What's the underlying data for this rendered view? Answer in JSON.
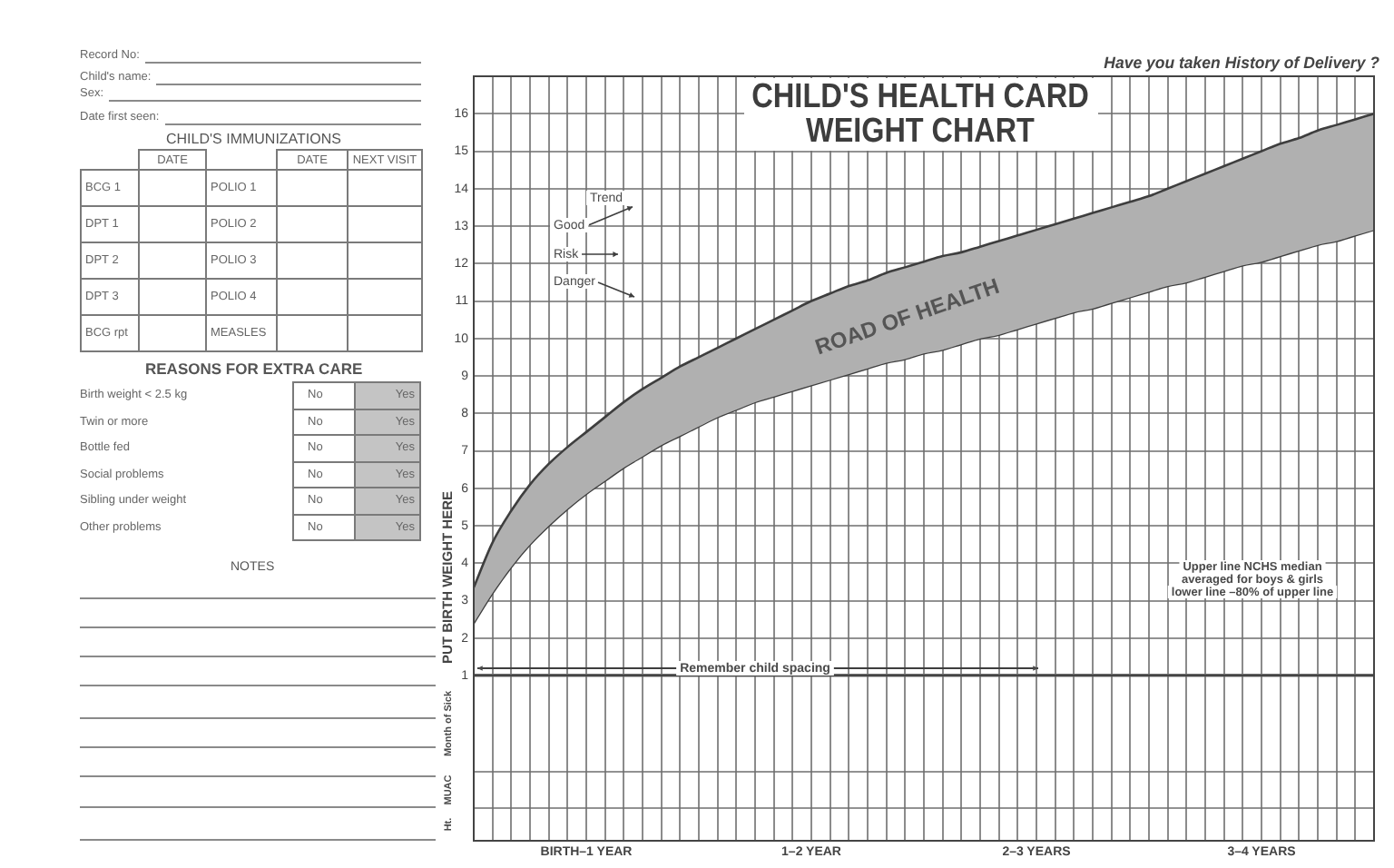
{
  "chart_data": [
    {
      "type": "other",
      "annotations": [
        "Record No:",
        "Child's name:",
        "Sex:",
        "Date first seen:",
        "CHILD'S IMMUNIZATIONS",
        "DATE",
        "DATE",
        "NEXT VISIT",
        "BCG 1",
        "POLIO 1",
        "DPT 1",
        "POLIO 2",
        "DPT 2",
        "POLIO 3",
        "DPT 3",
        "POLIO 4",
        "BCG rpt",
        "MEASLES",
        "REASONS FOR EXTRA CARE",
        "Birth weight < 2.5 kg",
        "No",
        "Yes",
        "Twin or more",
        "No",
        "Yes",
        "Bottle fed",
        "No",
        "Yes",
        "Social problems",
        "No",
        "Yes",
        "Sibling under weight",
        "No",
        "Yes",
        "Other problems",
        "No",
        "Yes",
        "NOTES"
      ]
    },
    {
      "type": "line",
      "title": "CHILD'S HEALTH CARD",
      "subtitle": "WEIGHT CHART",
      "ylabel": "PUT BIRTH WEIGHT HERE",
      "categories": [
        null,
        null,
        null,
        null,
        null,
        null,
        null,
        null,
        null,
        null,
        null,
        null,
        null,
        null,
        null,
        null,
        null,
        null,
        null,
        null,
        null,
        null,
        null,
        null,
        null,
        null,
        null,
        null,
        null,
        null,
        null,
        null,
        null,
        null,
        null,
        null,
        null,
        null,
        null,
        null,
        null,
        null,
        null,
        null,
        null,
        null,
        null,
        null,
        null
      ],
      "series": [
        {
          "type": "area",
          "color": "#b0b0b0",
          "values": [
            3.35,
            4.55,
            5.4,
            6.1,
            6.65,
            7.1,
            7.5,
            7.9,
            8.3,
            8.65,
            8.95,
            9.25,
            9.5,
            9.75,
            10.0,
            10.25,
            10.5,
            10.75,
            11.0,
            11.2,
            11.4,
            11.55,
            11.75,
            11.9,
            12.05,
            12.2,
            12.3,
            12.45,
            12.6,
            12.75,
            12.9,
            13.05,
            13.2,
            13.35,
            13.5,
            13.65,
            13.8,
            14.0,
            14.2,
            14.4,
            14.6,
            14.8,
            15.0,
            15.2,
            15.35,
            15.55,
            15.7,
            15.85,
            16.0
          ]
        },
        {
          "type": "line",
          "color": "#3e3e3e",
          "values": [
            2.4,
            3.2,
            3.9,
            4.5,
            5.0,
            5.45,
            5.85,
            6.2,
            6.55,
            6.85,
            7.15,
            7.4,
            7.65,
            7.9,
            8.1,
            8.3,
            8.45,
            8.6,
            8.75,
            8.9,
            9.05,
            9.2,
            9.35,
            9.45,
            9.6,
            9.7,
            9.85,
            10.0,
            10.1,
            10.25,
            10.4,
            10.55,
            10.7,
            10.8,
            10.95,
            11.1,
            11.25,
            11.4,
            11.5,
            11.65,
            11.8,
            11.95,
            12.05,
            12.2,
            12.35,
            12.5,
            12.6,
            12.75,
            12.9
          ]
        }
      ],
      "ylim": [
        1,
        17
      ],
      "yticks": [
        1,
        2,
        3,
        4,
        5,
        6,
        7,
        8,
        9,
        10,
        11,
        12,
        13,
        14,
        15,
        16
      ],
      "grid": true,
      "marker": "none",
      "annotations": [
        "Have you taken History of Delivery ?",
        "Trend",
        "Good",
        "Risk",
        "Danger",
        "ROAD OF HEALTH",
        "Upper line NCHS median\naveraged for boys & girls\nlower line –80% of upper line",
        "Remember child spacing"
      ]
    },
    {
      "type": "other",
      "categories": [
        null,
        null,
        null,
        null,
        null,
        null,
        "BIRTH–1 YEAR",
        null,
        null,
        null,
        null,
        null,
        null,
        null,
        null,
        null,
        null,
        null,
        "1–2 YEAR",
        null,
        null,
        null,
        null,
        null,
        null,
        null,
        null,
        null,
        null,
        null,
        "2–3 YEARS",
        null,
        null,
        null,
        null,
        null,
        null,
        null,
        null,
        null,
        null,
        null,
        "3–4 YEARS",
        null,
        null,
        null,
        null,
        null,
        null
      ],
      "annotations": [
        "Month of Sick",
        "MUAC",
        "Ht."
      ]
    }
  ]
}
